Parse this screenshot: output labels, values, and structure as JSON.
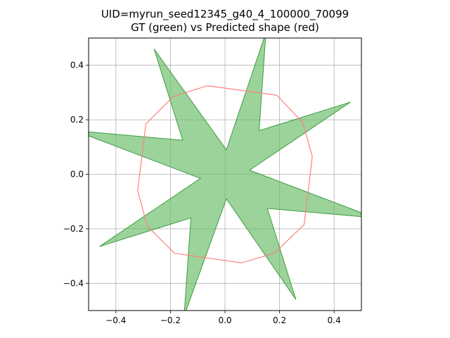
{
  "chart_data": {
    "type": "area",
    "title": "UID=myrun_seed12345_g40_4_100000_70099",
    "subtitle": "GT (green) vs Predicted shape (red)",
    "xlabel": "",
    "ylabel": "",
    "xlim": [
      -0.5,
      0.5
    ],
    "ylim": [
      -0.5,
      0.5
    ],
    "grid": true,
    "x_ticks": [
      -0.4,
      -0.2,
      0.0,
      0.2,
      0.4
    ],
    "y_ticks": [
      -0.4,
      -0.2,
      0.0,
      0.2,
      0.4
    ],
    "x_tick_labels": [
      "−0.4",
      "−0.2",
      "0.0",
      "0.2",
      "0.4"
    ],
    "y_tick_labels": [
      "−0.4",
      "−0.2",
      "0.0",
      "0.2",
      "0.4"
    ],
    "series": [
      {
        "key": "gt",
        "kind": "filled-polygon",
        "fill": "#66bb66",
        "fill_opacity": 0.65,
        "stroke": "#3f9b3f",
        "points": [
          [
            0.005,
            0.09
          ],
          [
            0.15,
            0.52
          ],
          [
            0.125,
            0.16
          ],
          [
            0.46,
            0.265
          ],
          [
            0.09,
            0.015
          ],
          [
            0.55,
            -0.16
          ],
          [
            0.155,
            -0.125
          ],
          [
            0.26,
            -0.46
          ],
          [
            0.005,
            -0.09
          ],
          [
            -0.15,
            -0.52
          ],
          [
            -0.125,
            -0.16
          ],
          [
            -0.46,
            -0.265
          ],
          [
            -0.09,
            -0.015
          ],
          [
            -0.55,
            0.16
          ],
          [
            -0.155,
            0.125
          ],
          [
            -0.26,
            0.46
          ]
        ]
      },
      {
        "key": "pred",
        "kind": "outline-polygon",
        "stroke": "#ff7f7f",
        "points": [
          [
            -0.065,
            0.325
          ],
          [
            0.19,
            0.29
          ],
          [
            0.285,
            0.19
          ],
          [
            0.32,
            0.065
          ],
          [
            0.29,
            -0.185
          ],
          [
            0.18,
            -0.29
          ],
          [
            0.06,
            -0.325
          ],
          [
            -0.185,
            -0.29
          ],
          [
            -0.285,
            -0.19
          ],
          [
            -0.32,
            -0.06
          ],
          [
            -0.29,
            0.185
          ],
          [
            -0.19,
            0.285
          ]
        ]
      }
    ]
  }
}
